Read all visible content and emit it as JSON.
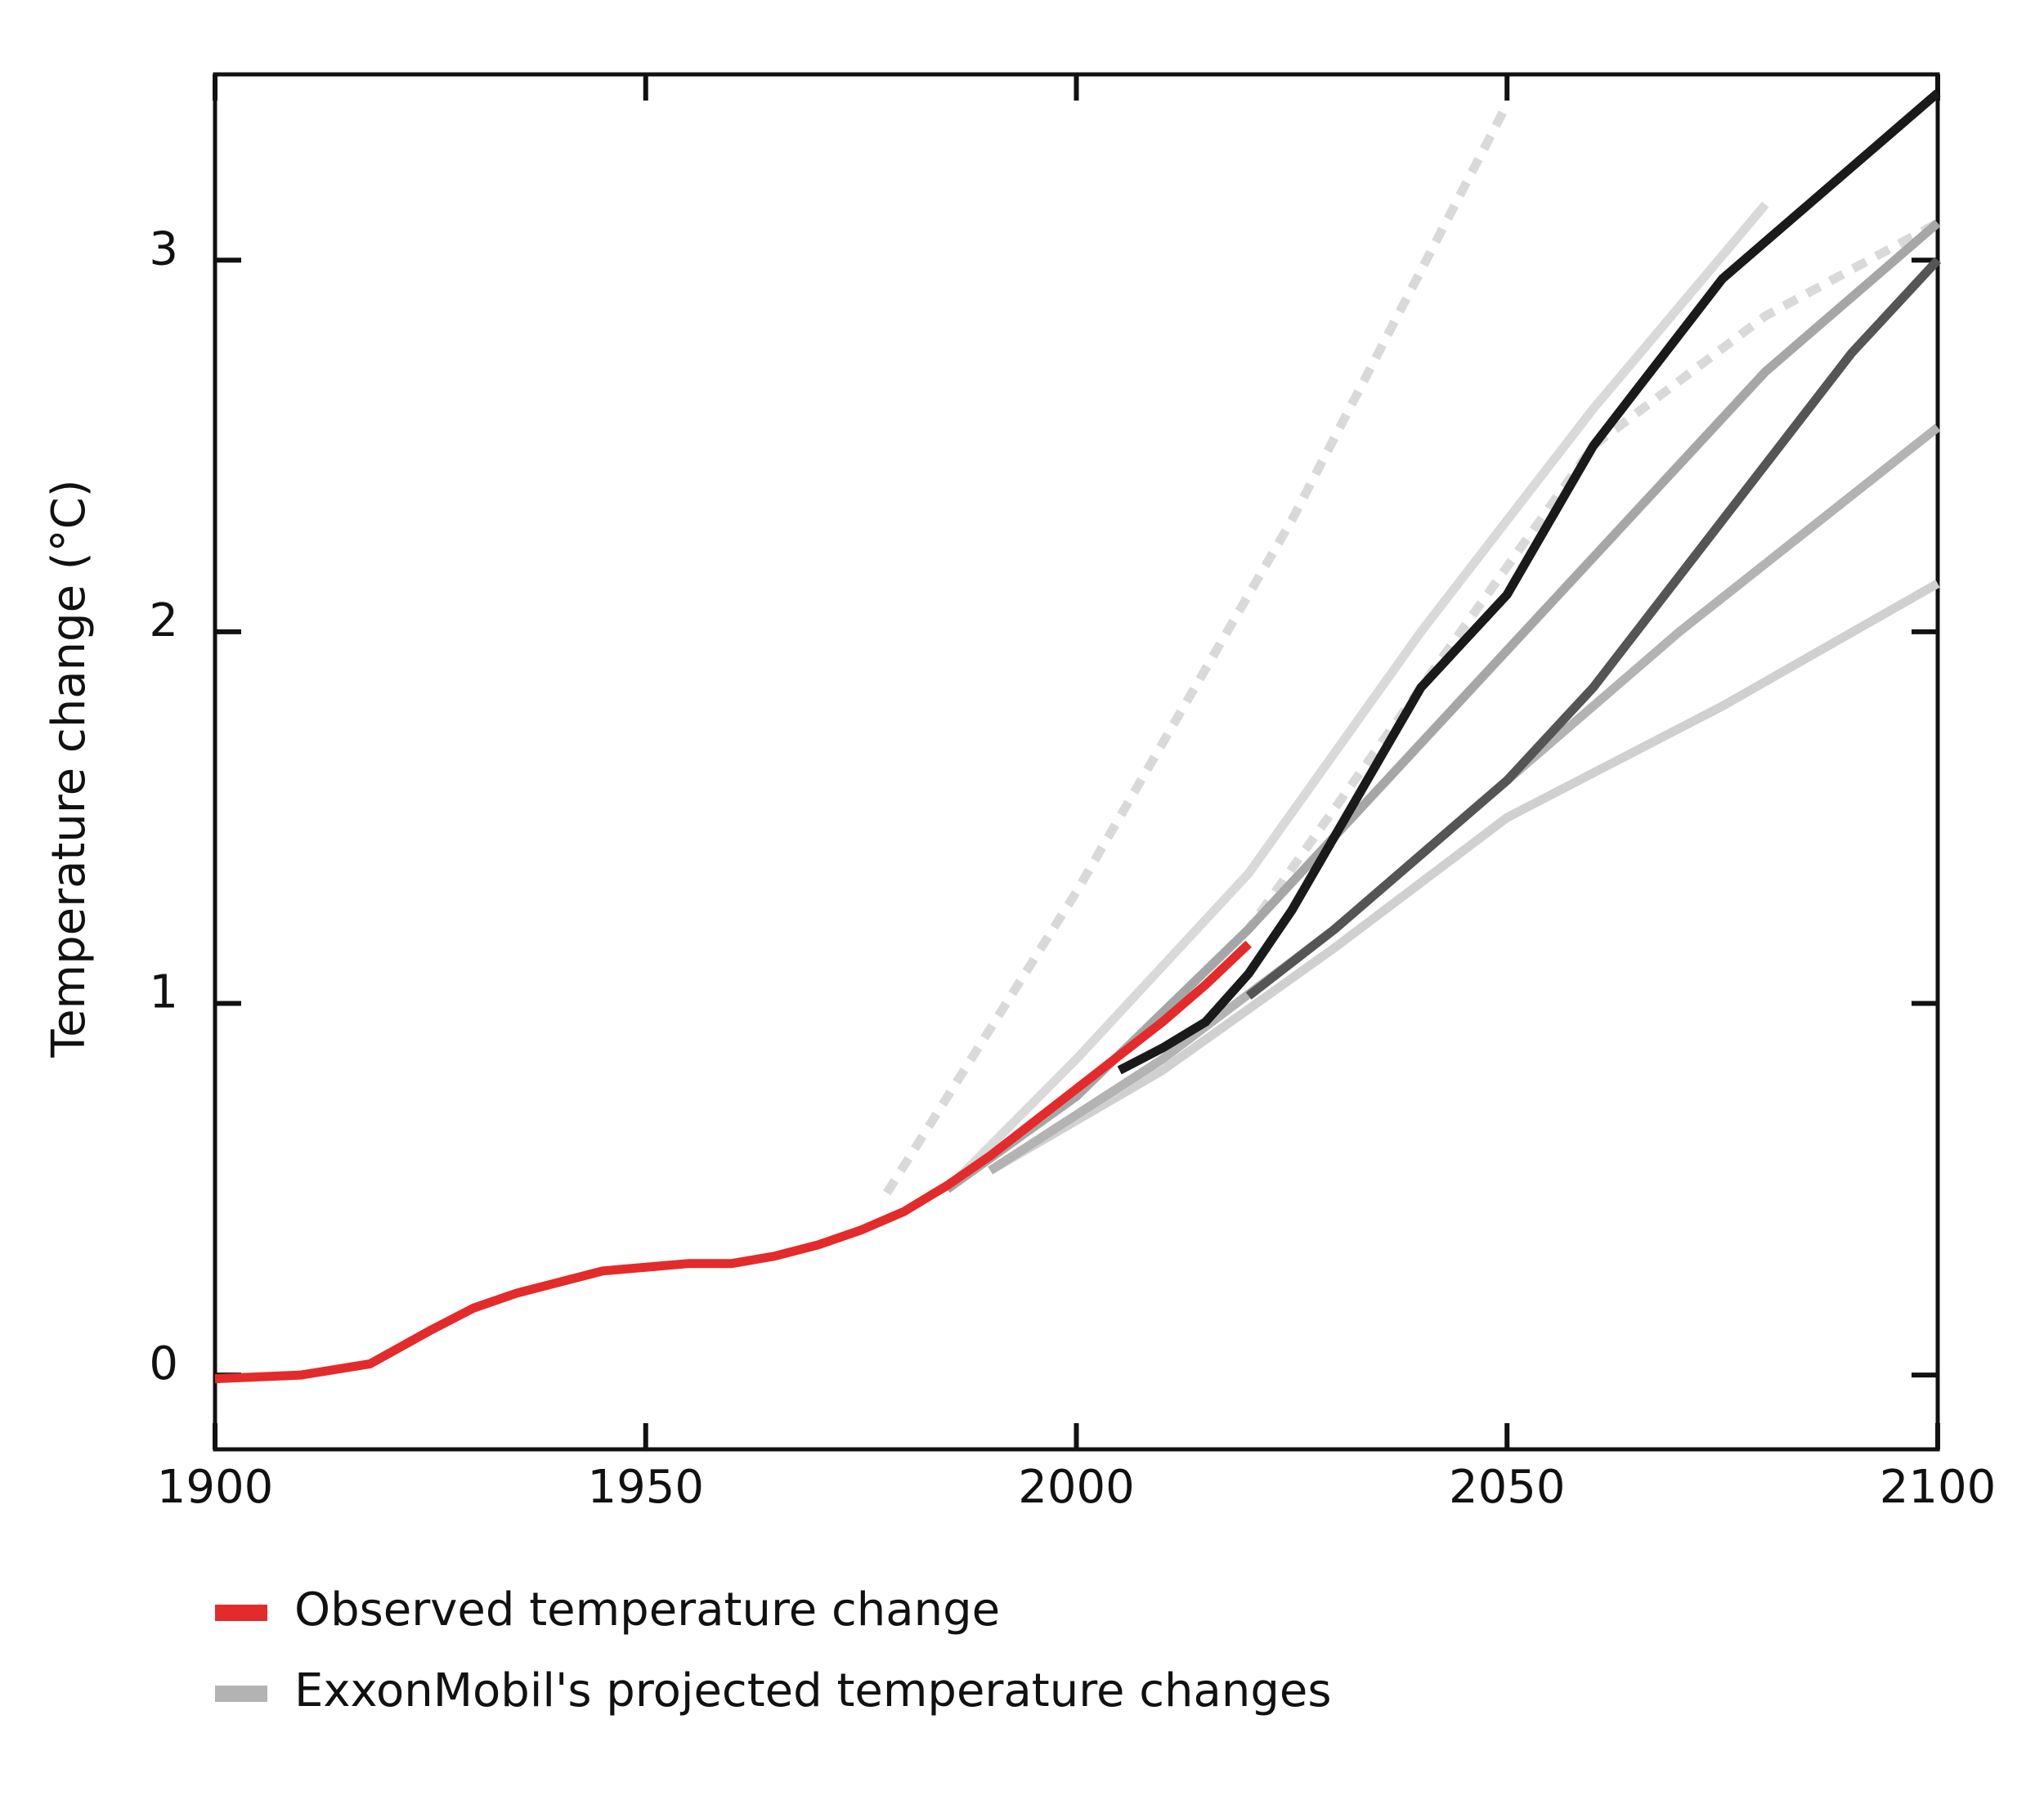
{
  "chart_data": {
    "type": "line",
    "y_label": "Temperature change (°C)",
    "xlim": [
      1900,
      2100
    ],
    "xticks": [
      1900,
      1950,
      2000,
      2050,
      2100
    ],
    "ylim": [
      -0.2,
      3.5
    ],
    "yticks": [
      0,
      1,
      2,
      3
    ],
    "legend": [
      {
        "label": "Observed temperature change",
        "color": "#e32b2b"
      },
      {
        "label": "ExxonMobil's projected temperature changes",
        "color": "#b3b3b3"
      }
    ],
    "series": [
      {
        "color": "#d9d9d9",
        "dashed": true,
        "x": [
          1978,
          2000,
          2025,
          2050
        ],
        "values": [
          0.49,
          1.3,
          2.3,
          3.42
        ]
      },
      {
        "color": "#d9d9d9",
        "dashed": false,
        "x": [
          1985,
          2000,
          2020,
          2040,
          2060,
          2080
        ],
        "values": [
          0.5,
          0.85,
          1.35,
          2.0,
          2.6,
          3.15
        ]
      },
      {
        "color": "#d9d9d9",
        "dashed": true,
        "x": [
          1985,
          2000,
          2020,
          2040,
          2060,
          2080,
          2100
        ],
        "values": [
          0.5,
          0.75,
          1.2,
          1.85,
          2.5,
          2.85,
          3.1
        ]
      },
      {
        "color": "#d0d0d0",
        "dashed": false,
        "x": [
          1990,
          2010,
          2030,
          2050,
          2075,
          2100
        ],
        "values": [
          0.55,
          0.82,
          1.15,
          1.5,
          1.8,
          2.13
        ]
      },
      {
        "color": "#b3b3b3",
        "dashed": false,
        "x": [
          1990,
          2010,
          2030,
          2050,
          2070,
          2100
        ],
        "values": [
          0.55,
          0.85,
          1.2,
          1.6,
          2.0,
          2.55
        ]
      },
      {
        "color": "#a6a6a6",
        "dashed": false,
        "x": [
          1985,
          2000,
          2020,
          2040,
          2060,
          2080,
          2100
        ],
        "values": [
          0.5,
          0.75,
          1.2,
          1.7,
          2.2,
          2.7,
          3.1
        ]
      },
      {
        "color": "#555555",
        "dashed": false,
        "x": [
          2020,
          2030,
          2040,
          2050,
          2060,
          2070,
          2080,
          2090,
          2100
        ],
        "values": [
          1.02,
          1.2,
          1.4,
          1.6,
          1.85,
          2.15,
          2.45,
          2.75,
          3.0
        ]
      },
      {
        "color": "#1a1a1a",
        "dashed": false,
        "x": [
          2005,
          2010,
          2015,
          2020,
          2025,
          2030,
          2035,
          2040,
          2050,
          2055,
          2060,
          2065,
          2070,
          2075,
          2080,
          2085,
          2090,
          2095,
          2100
        ],
        "values": [
          0.82,
          0.88,
          0.95,
          1.08,
          1.25,
          1.45,
          1.65,
          1.85,
          2.1,
          2.3,
          2.5,
          2.65,
          2.8,
          2.95,
          3.05,
          3.15,
          3.25,
          3.35,
          3.45
        ]
      },
      {
        "color": "#e32b2b",
        "dashed": false,
        "x": [
          1900,
          1910,
          1918,
          1925,
          1930,
          1935,
          1940,
          1945,
          1950,
          1955,
          1960,
          1965,
          1970,
          1975,
          1980,
          1985,
          1990,
          1995,
          2000,
          2005,
          2010,
          2015,
          2020
        ],
        "values": [
          -0.01,
          0.0,
          0.03,
          0.12,
          0.18,
          0.22,
          0.25,
          0.28,
          0.29,
          0.3,
          0.3,
          0.32,
          0.35,
          0.39,
          0.44,
          0.51,
          0.59,
          0.68,
          0.77,
          0.86,
          0.95,
          1.05,
          1.16
        ]
      }
    ]
  }
}
